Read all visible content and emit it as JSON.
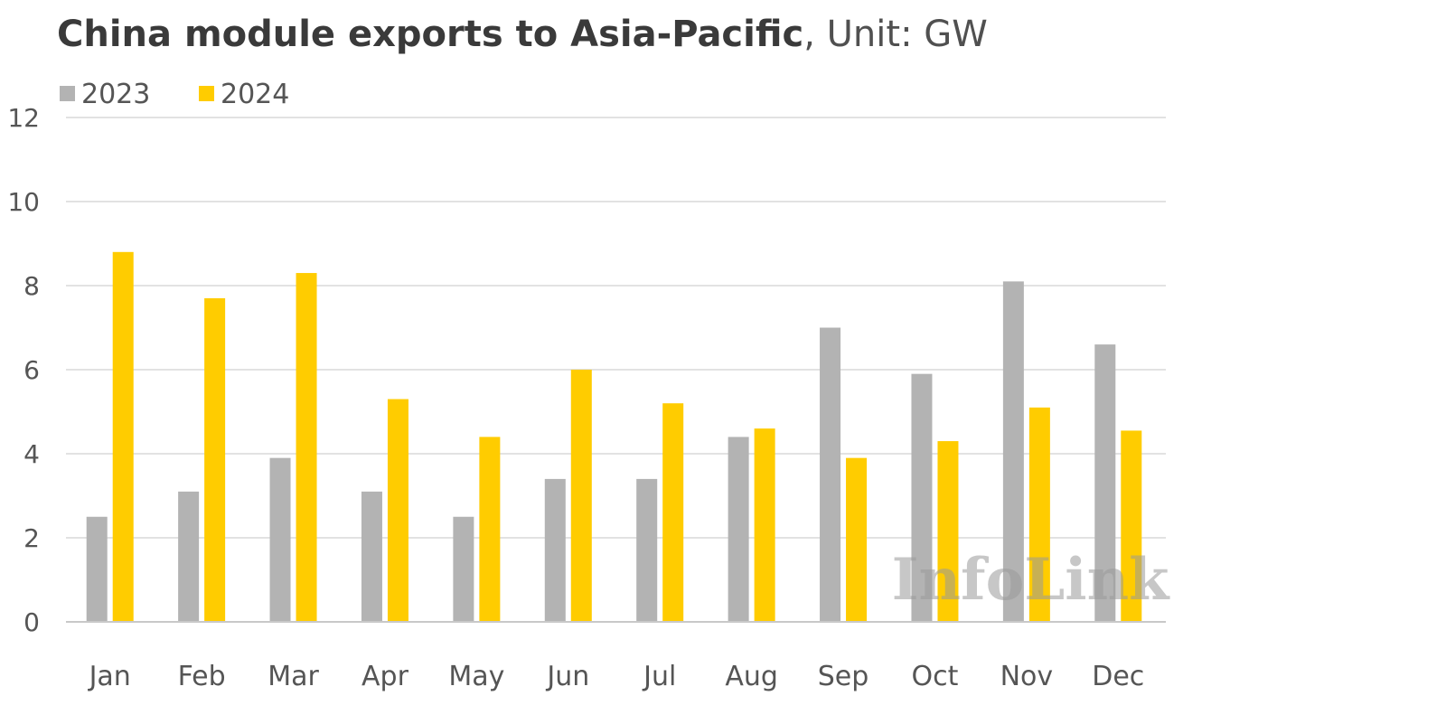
{
  "chart_data": {
    "type": "bar",
    "title": "China module exports to Asia-Pacific",
    "subtitle": "Unit: GW",
    "categories": [
      "Jan",
      "Feb",
      "Mar",
      "Apr",
      "May",
      "Jun",
      "Jul",
      "Aug",
      "Sep",
      "Oct",
      "Nov",
      "Dec"
    ],
    "series": [
      {
        "name": "2023",
        "color": "#b3b3b3",
        "values": [
          2.5,
          3.1,
          3.9,
          3.1,
          2.5,
          3.4,
          3.4,
          4.4,
          7.0,
          5.9,
          8.1,
          6.6
        ]
      },
      {
        "name": "2024",
        "color": "#ffcc00",
        "values": [
          8.8,
          7.7,
          8.3,
          5.3,
          4.4,
          6.0,
          5.2,
          4.6,
          3.9,
          4.3,
          5.1,
          4.55
        ]
      }
    ],
    "ylim": [
      0,
      12
    ],
    "yticks": [
      0,
      2,
      4,
      6,
      8,
      10,
      12
    ],
    "grid": true,
    "legend_position": "top-left",
    "gridline_color": "#d9d9d9"
  },
  "watermark": {
    "text": "InfoLink"
  }
}
